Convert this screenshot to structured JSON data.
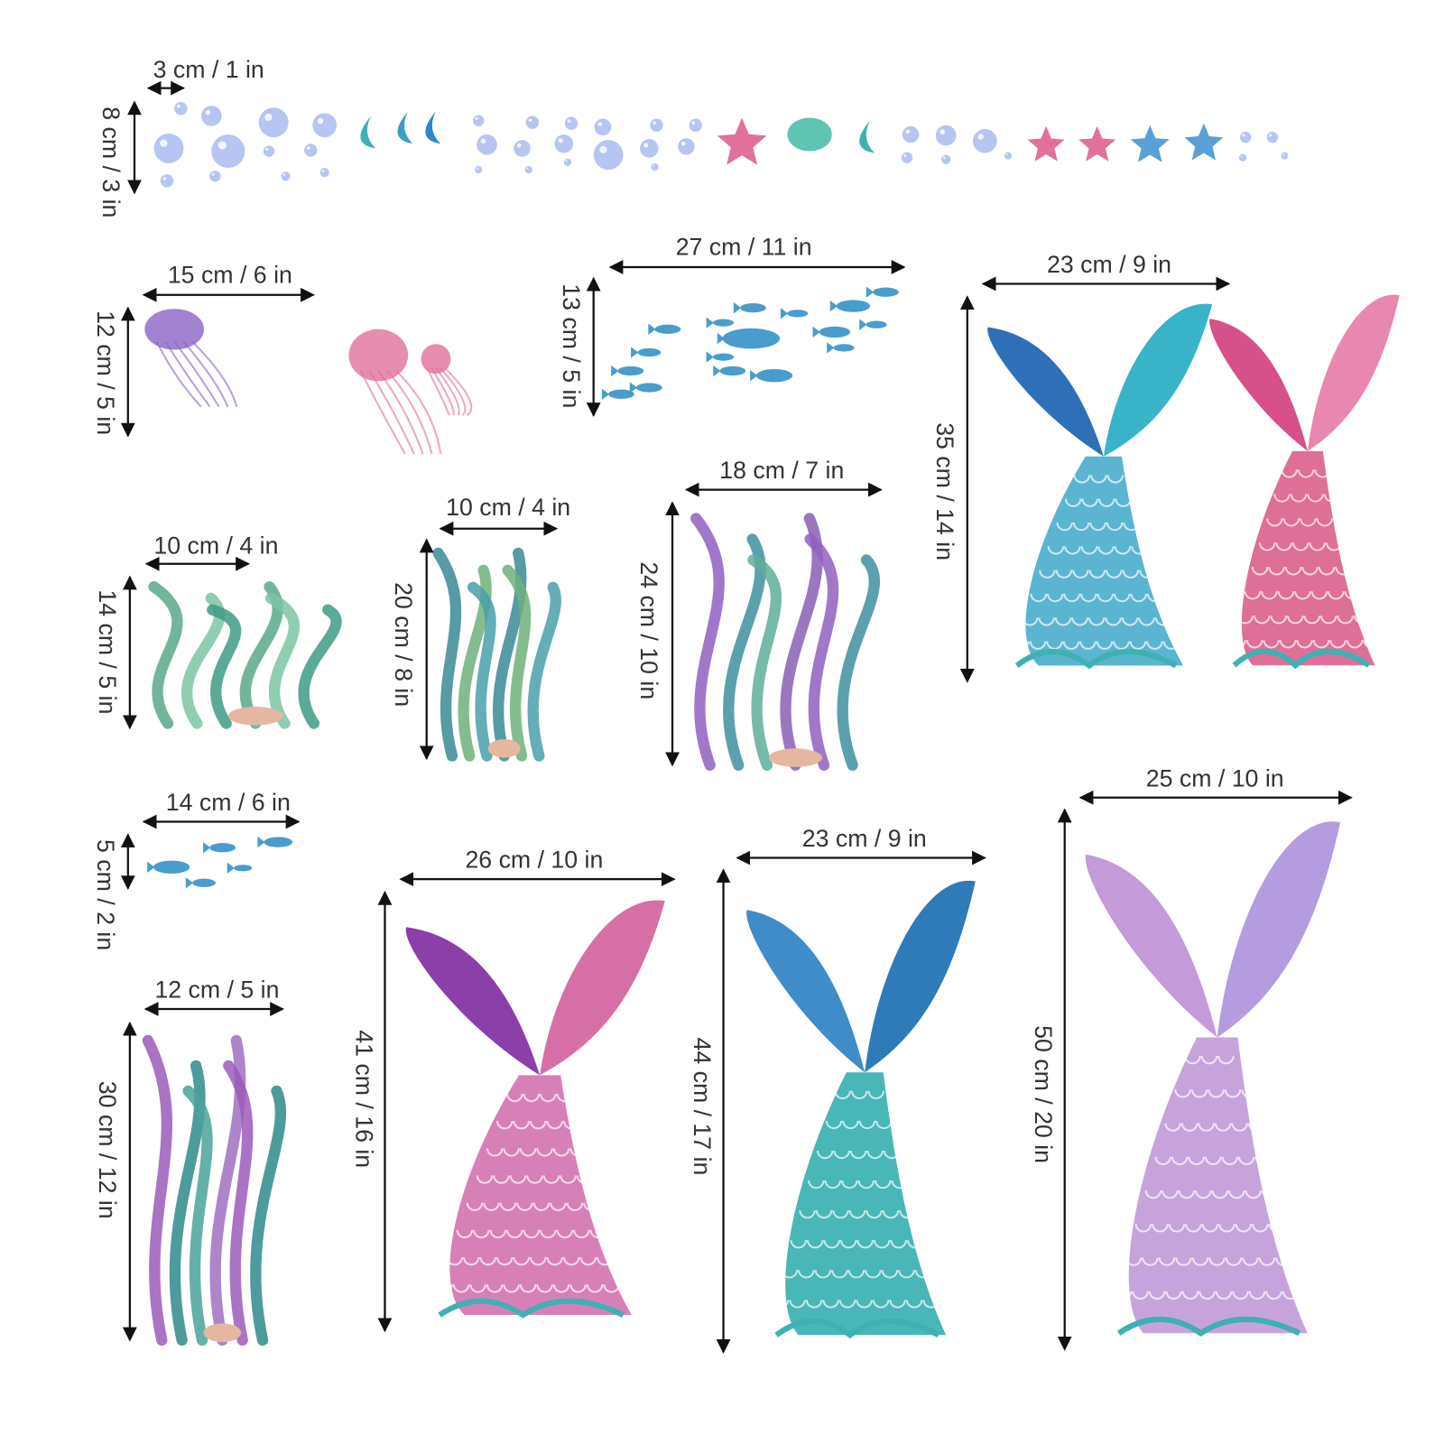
{
  "dimensions": [
    {
      "id": "bubble-width",
      "label": "3 cm / 1 in"
    },
    {
      "id": "bubble-strip-height",
      "label": "8 cm / 3 in"
    },
    {
      "id": "jellyfish-width",
      "label": "15 cm / 6 in"
    },
    {
      "id": "jellyfish-height",
      "label": "12 cm / 5 in"
    },
    {
      "id": "fish-school-width",
      "label": "27 cm / 11 in"
    },
    {
      "id": "fish-school-height",
      "label": "13 cm / 5 in"
    },
    {
      "id": "double-tail-width",
      "label": "23 cm / 9 in"
    },
    {
      "id": "double-tail-height",
      "label": "35 cm / 14 in"
    },
    {
      "id": "small-seaweed-width",
      "label": "10 cm / 4 in"
    },
    {
      "id": "small-seaweed-height",
      "label": "14 cm / 5 in"
    },
    {
      "id": "seaweed-shell-width",
      "label": "10 cm / 4 in"
    },
    {
      "id": "seaweed-shell-height",
      "label": "20 cm / 8 in"
    },
    {
      "id": "coral-cluster-width",
      "label": "18 cm / 7 in"
    },
    {
      "id": "coral-cluster-height",
      "label": "24 cm / 10 in"
    },
    {
      "id": "small-fish-width",
      "label": "14 cm / 6 in"
    },
    {
      "id": "small-fish-height",
      "label": "5 cm / 2 in"
    },
    {
      "id": "tall-seaweed-width",
      "label": "12 cm / 5 in"
    },
    {
      "id": "tall-seaweed-height",
      "label": "30 cm / 12 in"
    },
    {
      "id": "pink-tail-width",
      "label": "26 cm / 10 in"
    },
    {
      "id": "pink-tail-height",
      "label": "41 cm / 16 in"
    },
    {
      "id": "teal-tail-width",
      "label": "23 cm / 9 in"
    },
    {
      "id": "teal-tail-height",
      "label": "44 cm / 17 in"
    },
    {
      "id": "lavender-tail-width",
      "label": "25 cm / 10 in"
    },
    {
      "id": "lavender-tail-height",
      "label": "50 cm / 20 in"
    }
  ],
  "colors": {
    "bubble": "#9fb2ef",
    "teal": "#3fb0b3",
    "pink": "#e0709c",
    "purple": "#8a63c4",
    "blue": "#3d7fc0",
    "seaweed": "#4f9c8a",
    "lavender": "#c59ad8",
    "text": "#333333"
  }
}
